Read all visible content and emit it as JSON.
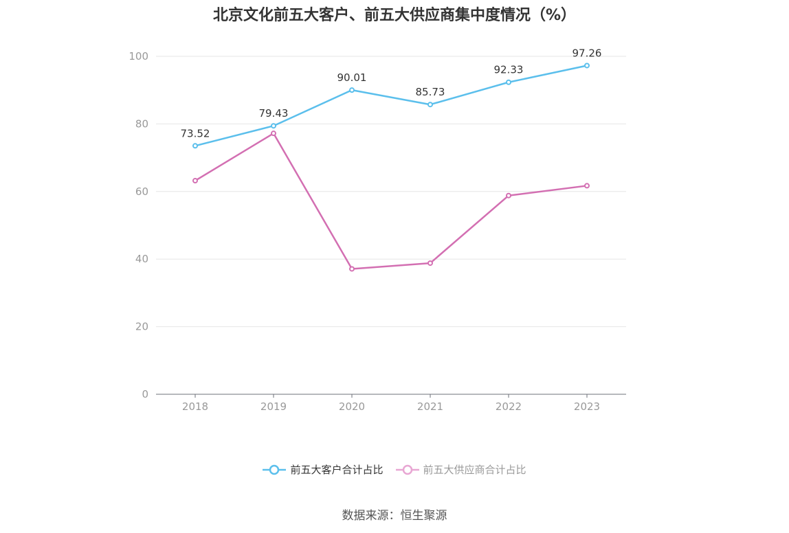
{
  "chart_data": {
    "type": "line",
    "title": "北京文化前五大客户、前五大供应商集中度情况（%）",
    "categories": [
      "2018",
      "2019",
      "2020",
      "2021",
      "2022",
      "2023"
    ],
    "series": [
      {
        "name": "前五大客户合计占比",
        "color": "#5bbfec",
        "values": [
          73.52,
          79.43,
          90.01,
          85.73,
          92.33,
          97.26
        ],
        "labels_shown": true
      },
      {
        "name": "前五大供应商合计占比",
        "color": "#d36fb2",
        "values": [
          63.2,
          77.2,
          37.1,
          38.8,
          58.8,
          61.7
        ],
        "labels_shown": false
      }
    ],
    "yticks": [
      0,
      20,
      40,
      60,
      80,
      100
    ],
    "ylim": [
      0,
      100
    ],
    "xlabel": "",
    "ylabel": "",
    "grid": true,
    "legend": "bottom-center"
  },
  "legend": {
    "items": [
      {
        "label": "前五大客户合计占比",
        "color": "#5bbfec",
        "text_color": "#333333"
      },
      {
        "label": "前五大供应商合计占比",
        "color": "#e8a6d3",
        "text_color": "#999999"
      }
    ]
  },
  "footer": {
    "source": "数据来源：恒生聚源"
  }
}
